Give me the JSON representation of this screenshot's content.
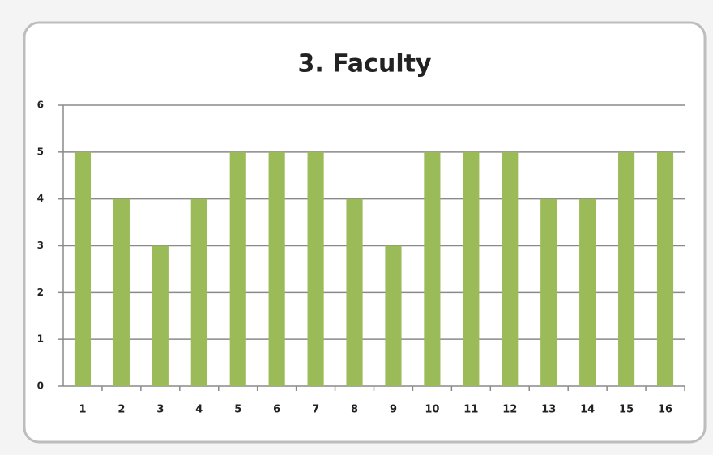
{
  "chart_data": {
    "type": "bar",
    "title": "3. Faculty",
    "categories": [
      "1",
      "2",
      "3",
      "4",
      "5",
      "6",
      "7",
      "8",
      "9",
      "10",
      "11",
      "12",
      "13",
      "14",
      "15",
      "16"
    ],
    "values": [
      5,
      4,
      3,
      4,
      5,
      5,
      5,
      4,
      3,
      5,
      5,
      5,
      4,
      4,
      5,
      5
    ],
    "color": "#9bbb59",
    "ylim": [
      0,
      6
    ],
    "yticks": [
      0,
      1,
      2,
      3,
      4,
      5,
      6
    ],
    "grid": true
  }
}
